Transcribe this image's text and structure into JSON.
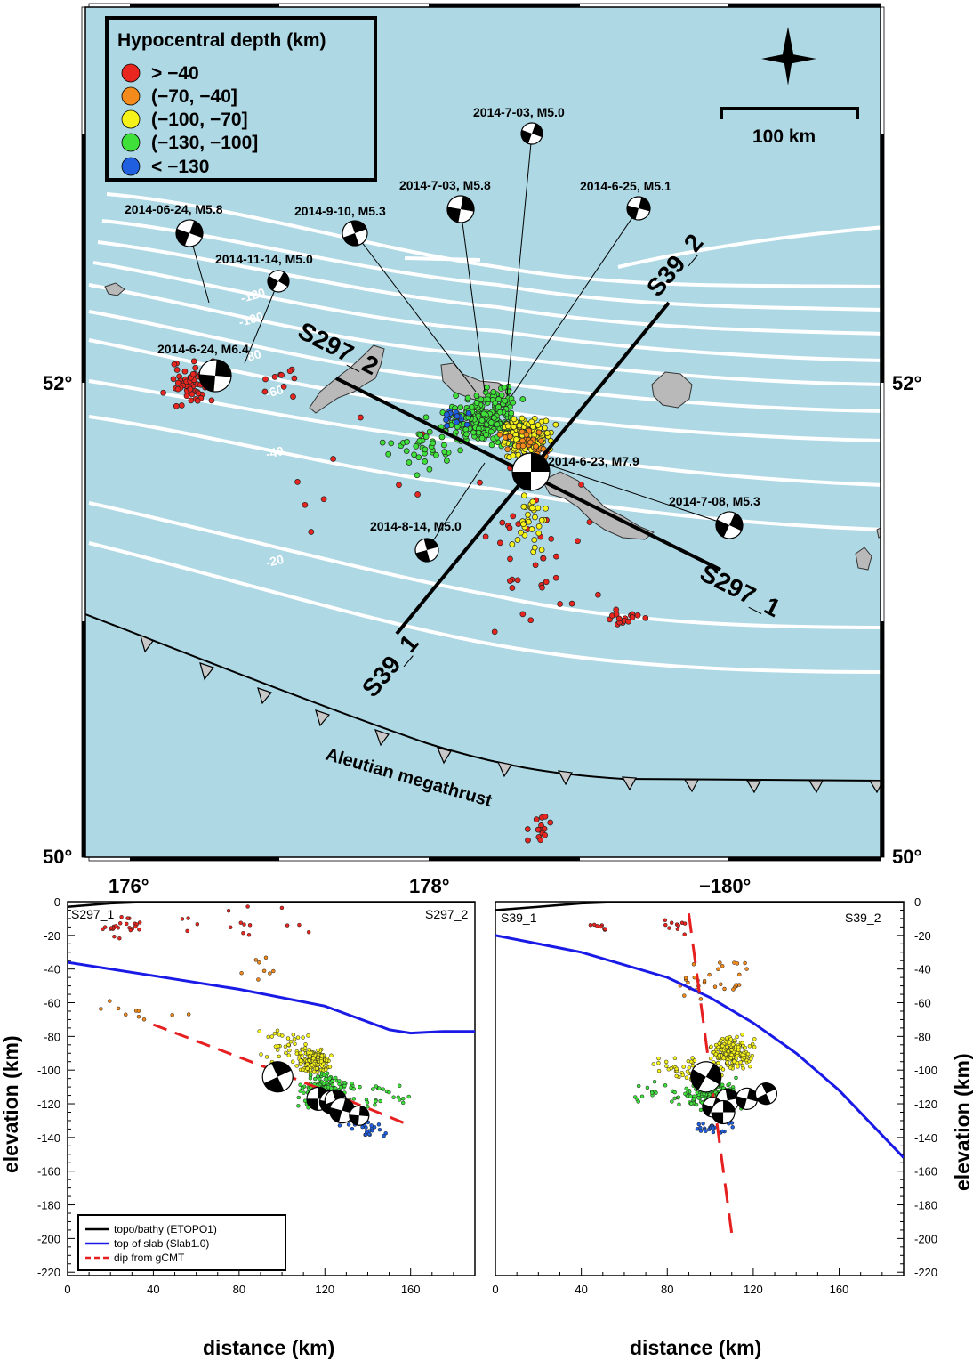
{
  "map": {
    "latitude_labels": [
      "52°",
      "50°"
    ],
    "longitude_labels": [
      "176°",
      "178°",
      "−180°"
    ],
    "scale_bar": "100 km",
    "megathrust_label": "Aleutian megathrust",
    "legend": {
      "title": "Hypocentral depth (km)",
      "items": [
        {
          "label": "> −40",
          "color": "#e8251f"
        },
        {
          "label": "(−70, −40]",
          "color": "#f28a1c"
        },
        {
          "label": "(−100, −70]",
          "color": "#f5f21a"
        },
        {
          "label": "(−130, −100]",
          "color": "#3fe03a"
        },
        {
          "label": "< −130",
          "color": "#1f5fe0"
        }
      ]
    },
    "profile_labels": [
      "S297_1",
      "S297_2",
      "S39_1",
      "S39_2"
    ],
    "contour_labels": [
      "-120",
      "-100",
      "-80",
      "-60",
      "-40",
      "-20"
    ],
    "events": [
      "2014-06-24, M5.8",
      "2014-11-14, M5.0",
      "2014-9-10, M5.3",
      "2014-7-03, M5.8",
      "2014-7-03, M5.0",
      "2014-6-25, M5.1",
      "2014-6-24, M6.4",
      "2014-6-23, M7.9",
      "2014-7-08, M5.3",
      "2014-8-14, M5.0"
    ],
    "colors": {
      "sea": "#add8e4",
      "land": "#b9b9b9",
      "contour": "#ffffff",
      "trench_triangle": "#c8c8c8"
    }
  },
  "sections": {
    "left": {
      "start_label": "S297_1",
      "end_label": "S297_2",
      "xlabel": "distance (km)",
      "ylabel": "elevation (km)",
      "x_ticks": [
        "0",
        "40",
        "80",
        "120",
        "160"
      ],
      "y_ticks": [
        "0",
        "-20",
        "-40",
        "-60",
        "-80",
        "-100",
        "-120",
        "-140",
        "-160",
        "-180",
        "-200",
        "-220"
      ],
      "legend": [
        "topo/bathy (ETOPO1)",
        "top of slab (Slab1.0)",
        "dip from gCMT"
      ]
    },
    "right": {
      "start_label": "S39_1",
      "end_label": "S39_2",
      "xlabel": "distance (km)",
      "ylabel": "elevation (km)",
      "x_ticks": [
        "0",
        "40",
        "80",
        "120",
        "160"
      ],
      "y_ticks": [
        "0",
        "-20",
        "-40",
        "-60",
        "-80",
        "-100",
        "-120",
        "-140",
        "-160",
        "-180",
        "-200",
        "-220"
      ]
    },
    "colors": {
      "topo": "#000000",
      "slab": "#1a1ae6",
      "dip": "#e62020"
    }
  },
  "chart_data": [
    {
      "type": "scatter",
      "xlabel": "distance (km)",
      "ylabel": "elevation (km)",
      "xlim": [
        0,
        190
      ],
      "ylim": [
        -222,
        0
      ],
      "series": [
        {
          "name": "topo/bathy (ETOPO1)",
          "x": [
            0,
            20,
            40,
            60,
            80,
            100,
            120,
            140,
            160,
            190
          ],
          "y": [
            -3,
            -1,
            0,
            0,
            0,
            0,
            0,
            0,
            0,
            0
          ]
        },
        {
          "name": "top of slab (Slab1.0)",
          "x": [
            0,
            40,
            80,
            120,
            150,
            160,
            175,
            190
          ],
          "y": [
            -36,
            -44,
            -52,
            -62,
            -76,
            -78,
            -77,
            -77
          ]
        },
        {
          "name": "dip from gCMT",
          "x": [
            40,
            100,
            160
          ],
          "y": [
            -73,
            -102,
            -133
          ]
        }
      ]
    },
    {
      "type": "scatter",
      "xlabel": "distance (km)",
      "ylabel": "elevation (km)",
      "xlim": [
        0,
        190
      ],
      "ylim": [
        -222,
        0
      ],
      "series": [
        {
          "name": "topo/bathy (ETOPO1)",
          "x": [
            0,
            20,
            40,
            60,
            80,
            100,
            120,
            140,
            160,
            190
          ],
          "y": [
            -5,
            -3,
            -1,
            0,
            0,
            0,
            0,
            0,
            0,
            0
          ]
        },
        {
          "name": "top of slab (Slab1.0)",
          "x": [
            0,
            40,
            80,
            100,
            120,
            140,
            160,
            190
          ],
          "y": [
            -20,
            -30,
            -45,
            -57,
            -72,
            -90,
            -112,
            -152
          ]
        },
        {
          "name": "dip from gCMT",
          "x": [
            90,
            110
          ],
          "y": [
            -7,
            -197
          ]
        }
      ]
    }
  ]
}
